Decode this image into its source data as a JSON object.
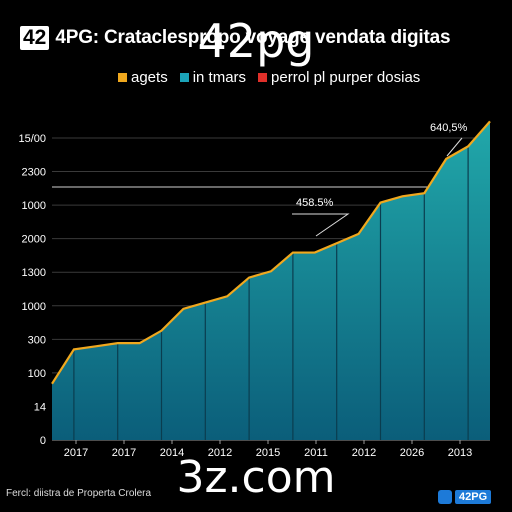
{
  "header": {
    "badge": "42",
    "title": "4PG: Crataclespropo voyage vendata digitas"
  },
  "overlays": {
    "top": "42pg",
    "middle": "3z.com"
  },
  "legend": [
    {
      "label": "agets",
      "color": "#f0a81e"
    },
    {
      "label": "in tmars",
      "color": "#1ba3b8"
    },
    {
      "label": "perrol pl purper dosias",
      "color": "#e0302a"
    }
  ],
  "footer": {
    "source": "Fercl: diistra de Properta Crolera",
    "logo": "42PG"
  },
  "chart_data": {
    "type": "area",
    "title": "4PG: Crataclespropo voyage vendata digitas",
    "y_tick_labels": [
      "0",
      "14",
      "100",
      "300",
      "1000",
      "1300",
      "2000",
      "1000",
      "2300",
      "15/00"
    ],
    "x_tick_labels": [
      "2017",
      "2017",
      "2014",
      "2012",
      "2015",
      "2011",
      "2012",
      "2026",
      "2013"
    ],
    "grid": true,
    "series": [
      {
        "name": "agets",
        "color": "#f0a81e",
        "x": [
          0,
          0.5,
          1,
          1.5,
          2,
          2.5,
          3,
          3.5,
          4,
          4.5,
          5,
          5.5,
          6,
          6.5,
          7,
          7.5,
          8,
          8.5,
          9,
          9.5,
          10
        ],
        "values": [
          1.8,
          2.9,
          3.0,
          3.1,
          3.1,
          3.5,
          4.2,
          4.4,
          4.6,
          5.2,
          5.4,
          6.0,
          6.0,
          6.3,
          6.6,
          7.6,
          7.8,
          7.9,
          9.0,
          9.4,
          10.2
        ]
      }
    ],
    "annotations": [
      {
        "text": "458.5%",
        "x": 6.2
      },
      {
        "text": "640,5%",
        "x": 9.4
      }
    ]
  }
}
